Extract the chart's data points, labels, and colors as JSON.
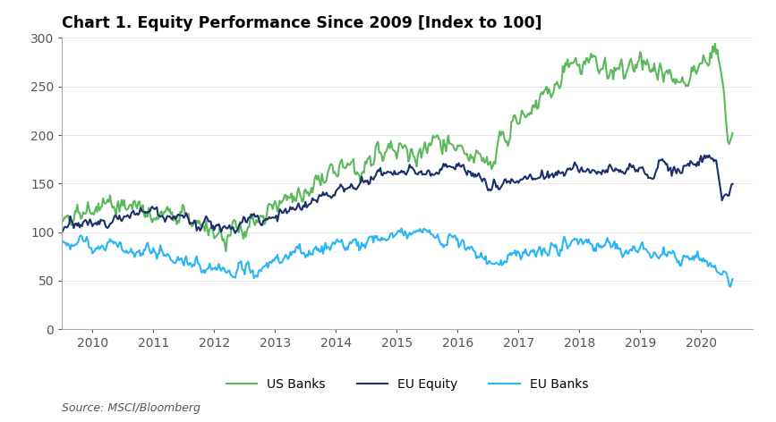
{
  "title": "Chart 1. Equity Performance Since 2009 [Index to 100]",
  "source": "Source: MSCI/Bloomberg",
  "ylim": [
    0,
    300
  ],
  "yticks": [
    0,
    50,
    100,
    150,
    200,
    250,
    300
  ],
  "xlim_start": 2009.5,
  "xlim_end": 2020.85,
  "xtick_labels": [
    "2010",
    "2011",
    "2012",
    "2013",
    "2014",
    "2015",
    "2016",
    "2017",
    "2018",
    "2019",
    "2020"
  ],
  "xtick_positions": [
    2010,
    2011,
    2012,
    2013,
    2014,
    2015,
    2016,
    2017,
    2018,
    2019,
    2020
  ],
  "series": {
    "US Banks": {
      "color": "#5cb85c",
      "linewidth": 1.5
    },
    "EU Equity": {
      "color": "#1a2f6b",
      "linewidth": 1.5
    },
    "EU Banks": {
      "color": "#29b6f6",
      "linewidth": 1.5
    }
  },
  "background_color": "#ffffff",
  "title_fontsize": 12.5,
  "axis_fontsize": 10
}
